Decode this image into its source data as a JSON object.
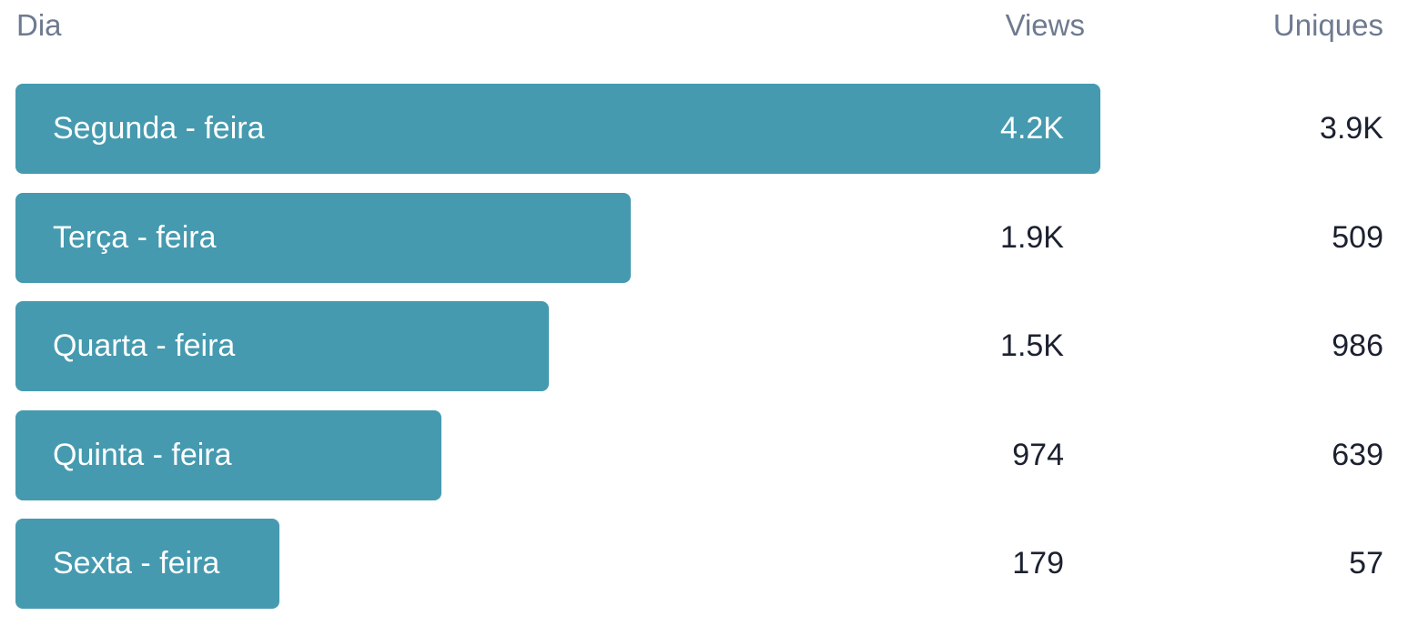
{
  "headers": {
    "day": "Dia",
    "views": "Views",
    "uniques": "Uniques"
  },
  "colors": {
    "bar": "#459aaf",
    "header_text": "#6e7a8f",
    "value_text": "#1c2130",
    "bar_text": "#ffffff"
  },
  "chart_data": {
    "type": "bar",
    "orientation": "horizontal",
    "categories": [
      "Segunda - feira",
      "Terça - feira",
      "Quarta - feira",
      "Quinta - feira",
      "Sexta - feira"
    ],
    "series": [
      {
        "name": "Views",
        "values": [
          4200,
          1900,
          1500,
          974,
          179
        ],
        "labels": [
          "4.2K",
          "1.9K",
          "1.5K",
          "974",
          "179"
        ]
      },
      {
        "name": "Uniques",
        "values": [
          3900,
          509,
          986,
          639,
          57
        ],
        "labels": [
          "3.9K",
          "509",
          "986",
          "639",
          "57"
        ]
      }
    ]
  }
}
